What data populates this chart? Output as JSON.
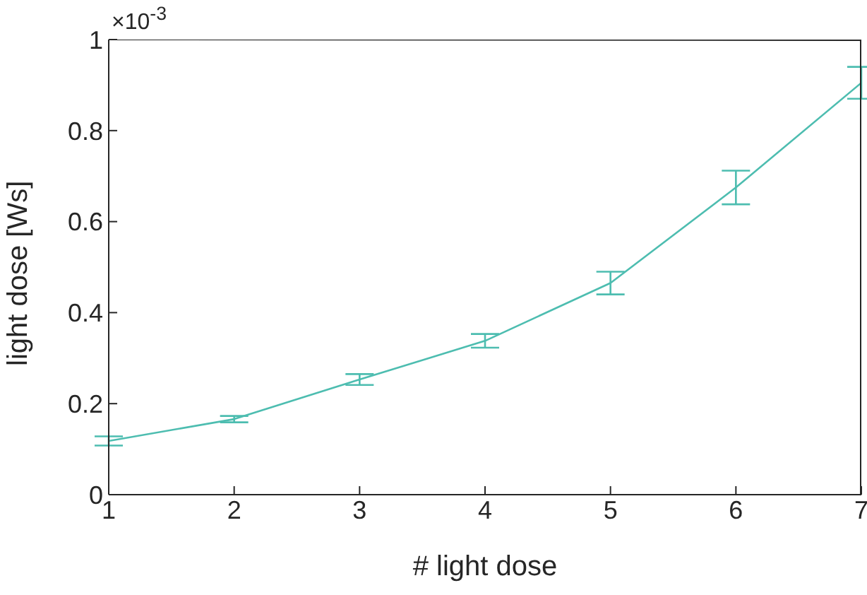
{
  "chart_data": {
    "type": "line",
    "xlabel": "# light dose",
    "ylabel": "light dose [Ws]",
    "annotations": [
      "×10$^{-3}$"
    ],
    "x": [
      1,
      2,
      3,
      4,
      5,
      6,
      7
    ],
    "series": [
      {
        "color": "#4dbdb0",
        "values": [
          0.118,
          0.166,
          0.253,
          0.338,
          0.465,
          0.675,
          0.905
        ],
        "errors": [
          0.01,
          0.007,
          0.012,
          0.015,
          0.025,
          0.037,
          0.035
        ]
      }
    ],
    "xlim": [
      1,
      7
    ],
    "xticks": [
      1,
      2,
      3,
      4,
      5,
      6,
      7
    ],
    "ylim": [
      0,
      1
    ],
    "yticks": [
      0,
      0.2,
      0.4,
      0.6,
      0.8,
      1
    ],
    "grid": false,
    "legend": false,
    "marker": "none",
    "line_style": "solid"
  }
}
